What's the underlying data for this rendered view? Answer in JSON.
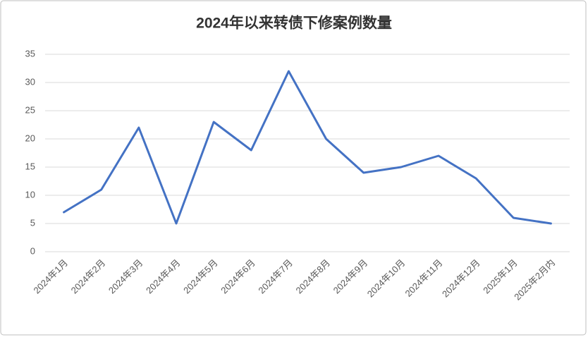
{
  "chart_data": {
    "type": "line",
    "title": "2024年以来转债下修案例数量",
    "categories": [
      "2024年1月",
      "2024年2月",
      "2024年3月",
      "2024年4月",
      "2024年5月",
      "2024年6月",
      "2024年7月",
      "2024年8月",
      "2024年9月",
      "2024年10月",
      "2024年11月",
      "2024年12月",
      "2025年1月",
      "2025年2月内"
    ],
    "values": [
      7,
      11,
      22,
      5,
      23,
      18,
      32,
      20,
      14,
      15,
      17,
      13,
      6,
      5
    ],
    "color": "#4472c4",
    "ylim": [
      0,
      35
    ],
    "yticks": [
      0,
      5,
      10,
      15,
      20,
      25,
      30,
      35
    ],
    "grid": true
  }
}
